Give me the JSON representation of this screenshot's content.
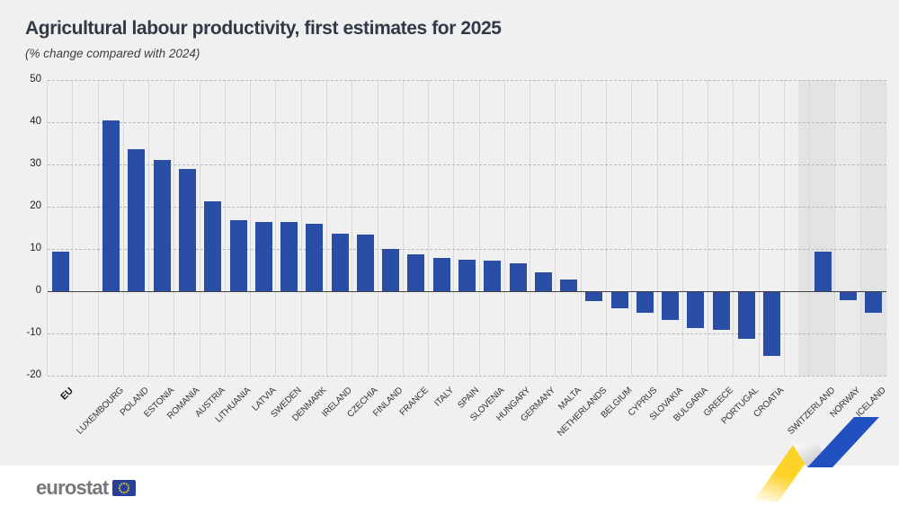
{
  "header": {
    "title": "Agricultural labour productivity, first estimates for 2025",
    "subtitle": "(% change compared with 2024)"
  },
  "chart_data": {
    "type": "bar",
    "title": "Agricultural labour productivity, first estimates for 2025",
    "subtitle": "(% change compared with 2024)",
    "unit": "% change vs 2024",
    "categories": [
      "EU",
      "LUXEMBOURG",
      "POLAND",
      "ESTONIA",
      "ROMANIA",
      "AUSTRIA",
      "LITHUANIA",
      "LATVIA",
      "SWEDEN",
      "DENMARK",
      "IRELAND",
      "CZECHIA",
      "FINLAND",
      "FRANCE",
      "ITALY",
      "SPAIN",
      "SLOVENIA",
      "HUNGARY",
      "GERMANY",
      "MALTA",
      "NETHERLANDS",
      "BELGIUM",
      "CYPRUS",
      "SLOVAKIA",
      "BULGARIA",
      "GREECE",
      "PORTUGAL",
      "CROATIA",
      "SWITZERLAND",
      "NORWAY",
      "ICELAND"
    ],
    "values": [
      9.4,
      40.4,
      33.6,
      31.0,
      28.9,
      21.3,
      16.8,
      16.4,
      16.3,
      15.9,
      13.7,
      13.3,
      10.1,
      8.7,
      7.8,
      7.4,
      7.2,
      6.5,
      4.4,
      2.8,
      -2.2,
      -3.8,
      -4.9,
      -6.6,
      -8.5,
      -9.0,
      -11.0,
      -15.2,
      9.3,
      -2.0,
      -4.8
    ],
    "bold_categories": [
      "EU"
    ],
    "separators_after_indices": [
      0,
      27
    ],
    "shaded_from_index": 28,
    "ylim": [
      -20,
      50
    ],
    "yticks": [
      50,
      40,
      30,
      20,
      10,
      0,
      -10,
      -20
    ],
    "grid": {
      "horizontal": "dashed",
      "vertical": "solid-light"
    },
    "legend": null,
    "colors": {
      "bar": "#2a4da6",
      "shaded_band": [
        "#e2e3e4",
        "#eaeaea",
        "#e2e3e4"
      ],
      "zero_line": "#404040",
      "grid_horizontal": "#b9b9b9",
      "grid_vertical": "#d9d9d9",
      "background": "#f0f0f1",
      "title_text": "#2f3a46",
      "axis_text": "#222222"
    }
  },
  "footer": {
    "brand": "eurostat",
    "eu_flag": "eu-flag-icon",
    "ribbon_colors": {
      "yellow": "#fdd32a",
      "blue": "#2151c0",
      "fold": "#c9c9c9"
    }
  }
}
